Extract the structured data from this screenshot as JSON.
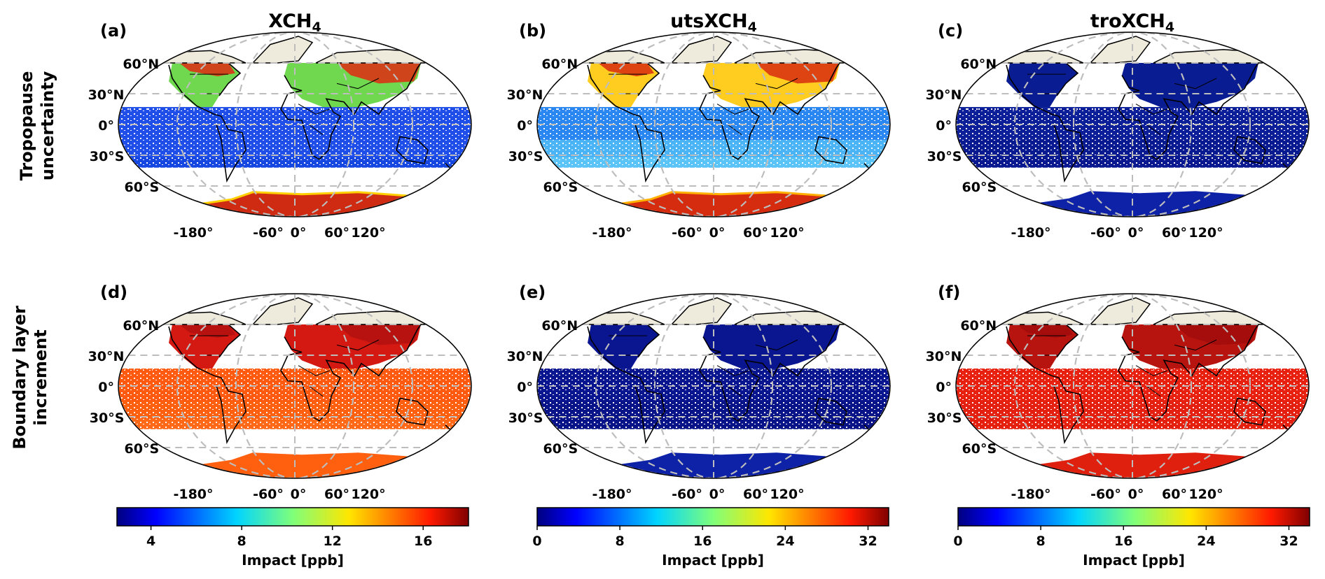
{
  "figure": {
    "column_titles": [
      "XCH",
      "utsXCH",
      "troXCH"
    ],
    "column_title_subscript": "4",
    "row_labels": [
      [
        "Tropopause",
        "uncertainty"
      ],
      [
        "Boundary layer",
        "increment"
      ]
    ],
    "panel_labels": [
      "(a)",
      "(b)",
      "(c)",
      "(d)",
      "(e)",
      "(f)"
    ],
    "lat_tick_labels": [
      "60°N",
      "30°N",
      "0°",
      "30°S",
      "60°S"
    ],
    "lon_tick_labels": [
      "-180°",
      "-60°",
      "0°",
      "60°",
      "120°"
    ],
    "colors": {
      "land": "#efebdc",
      "gridline": "#bdbdbd",
      "coast": "#000000"
    }
  },
  "chart_data": [
    {
      "type": "heatmap",
      "panel": "(a)",
      "column": "XCH4",
      "row": "Tropopause uncertainty",
      "colormap": "jet",
      "colorbar": "shared with (d)",
      "description_level": "high in northern mid-latitudes and Antarctica, low over tropics"
    },
    {
      "type": "heatmap",
      "panel": "(b)",
      "column": "utsXCH4",
      "row": "Tropopause uncertainty",
      "colormap": "jet",
      "colorbar": "shared with (e)"
    },
    {
      "type": "heatmap",
      "panel": "(c)",
      "column": "troXCH4",
      "row": "Tropopause uncertainty",
      "colormap": "jet",
      "colorbar": "shared with (f)"
    },
    {
      "type": "heatmap",
      "panel": "(d)",
      "column": "XCH4",
      "row": "Boundary layer increment",
      "colormap": "jet"
    },
    {
      "type": "heatmap",
      "panel": "(e)",
      "column": "utsXCH4",
      "row": "Boundary layer increment",
      "colormap": "jet"
    },
    {
      "type": "heatmap",
      "panel": "(f)",
      "column": "troXCH4",
      "row": "Boundary layer increment",
      "colormap": "jet"
    }
  ],
  "colorbars": [
    {
      "label": "Impact [ppb]",
      "range": [
        2.5,
        18
      ],
      "ticks": [
        "4",
        "8",
        "12",
        "16"
      ],
      "tick_values": [
        4,
        8,
        12,
        16
      ]
    },
    {
      "label": "Impact [ppb]",
      "range": [
        0,
        34
      ],
      "ticks": [
        "0",
        "8",
        "16",
        "24",
        "32"
      ],
      "tick_values": [
        0,
        8,
        16,
        24,
        32
      ]
    },
    {
      "label": "Impact [ppb]",
      "range": [
        0,
        34
      ],
      "ticks": [
        "0",
        "8",
        "16",
        "24",
        "32"
      ],
      "tick_values": [
        0,
        8,
        16,
        24,
        32
      ]
    }
  ],
  "panels": [
    {
      "id": "a",
      "tropics": "#1f4fe8",
      "tropics_edge": "#0030d0",
      "north": "#6fd84f",
      "north_hot": "#e02a10",
      "south": "#1f4fe8",
      "south_band": "#1546e0",
      "antarctica": "#cf2a12",
      "antarctica_edge": "#ffd000"
    },
    {
      "id": "b",
      "tropics": "#2a86f0",
      "tropics_edge": "#1266e6",
      "north": "#ffcc20",
      "north_hot": "#d82a10",
      "south": "#4bb4f6",
      "south_band": "#5cc4f8",
      "antarctica": "#d52c10",
      "antarctica_edge": "#ffb000"
    },
    {
      "id": "c",
      "tropics": "#0c1f99",
      "tropics_edge": "#081880",
      "north": "#0a1c92",
      "north_hot": "#0a1c92",
      "south": "#0a1a90",
      "south_band": "#0a1a90",
      "antarctica": "#0d22a6",
      "antarctica_edge": "#0d22a6"
    },
    {
      "id": "d",
      "tropics": "#ff5a10",
      "tropics_edge": "#ff6a18",
      "north": "#d41812",
      "north_hot": "#b21010",
      "south": "#ff6010",
      "south_band": "#ff6a18",
      "antarctica": "#ff6010",
      "antarctica_edge": "#ff6010"
    },
    {
      "id": "e",
      "tropics": "#0a1590",
      "tropics_edge": "#071280",
      "north": "#0a1590",
      "north_hot": "#0a1590",
      "south": "#091488",
      "south_band": "#091488",
      "antarctica": "#0d22a6",
      "antarctica_edge": "#0d22a6"
    },
    {
      "id": "f",
      "tropics": "#e8200f",
      "tropics_edge": "#f02a12",
      "north": "#b8140f",
      "north_hot": "#a00c0c",
      "south": "#e42010",
      "south_band": "#e42010",
      "antarctica": "#e0200e",
      "antarctica_edge": "#e0200e"
    }
  ]
}
